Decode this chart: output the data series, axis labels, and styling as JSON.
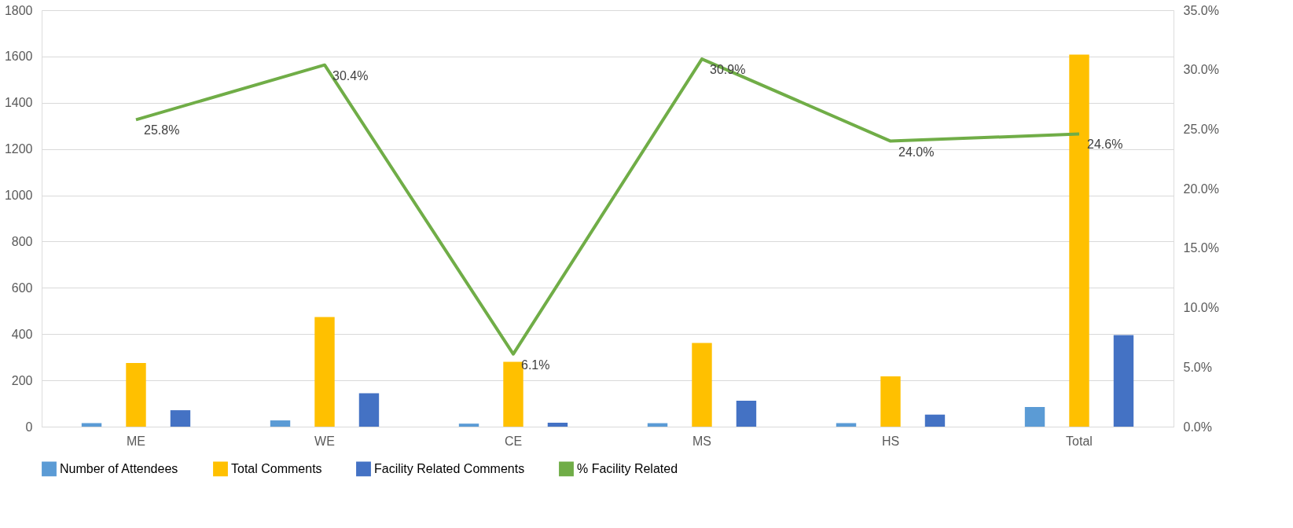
{
  "chart_data": {
    "type": "bar",
    "categories": [
      "ME",
      "WE",
      "CE",
      "MS",
      "HS",
      "Total"
    ],
    "series": [
      {
        "name": "Number of Attendees",
        "color": "#5b9bd5",
        "values": [
          15,
          27,
          13,
          15,
          15,
          85
        ]
      },
      {
        "name": "Total Comments",
        "color": "#ffc000",
        "values": [
          275,
          474,
          280,
          362,
          217,
          1608
        ]
      },
      {
        "name": "Facility Related Comments",
        "color": "#4472c4",
        "values": [
          71,
          144,
          17,
          112,
          52,
          396
        ]
      },
      {
        "name": "% Facility Related",
        "color": "#70ad47",
        "type": "line",
        "axis": "y2",
        "values": [
          25.8,
          30.4,
          6.1,
          30.9,
          24.0,
          24.6
        ],
        "value_labels": [
          "25.8%",
          "30.4%",
          "6.1%",
          "30.9%",
          "24.0%",
          "24.6%"
        ]
      }
    ],
    "ylim": [
      0,
      1800
    ],
    "yticks": [
      0,
      200,
      400,
      600,
      800,
      1000,
      1200,
      1400,
      1600,
      1800
    ],
    "y2lim": [
      0,
      35
    ],
    "y2ticks": [
      {
        "value": 0,
        "label": "0.0%"
      },
      {
        "value": 5,
        "label": "5.0%"
      },
      {
        "value": 10,
        "label": "10.0%"
      },
      {
        "value": 15,
        "label": "15.0%"
      },
      {
        "value": 20,
        "label": "20.0%"
      },
      {
        "value": 25,
        "label": "25.0%"
      },
      {
        "value": 30,
        "label": "30.0%"
      },
      {
        "value": 35,
        "label": "35.0%"
      }
    ],
    "grid": "y",
    "legend": "bottom",
    "marker": "none",
    "line_style": "solid"
  }
}
